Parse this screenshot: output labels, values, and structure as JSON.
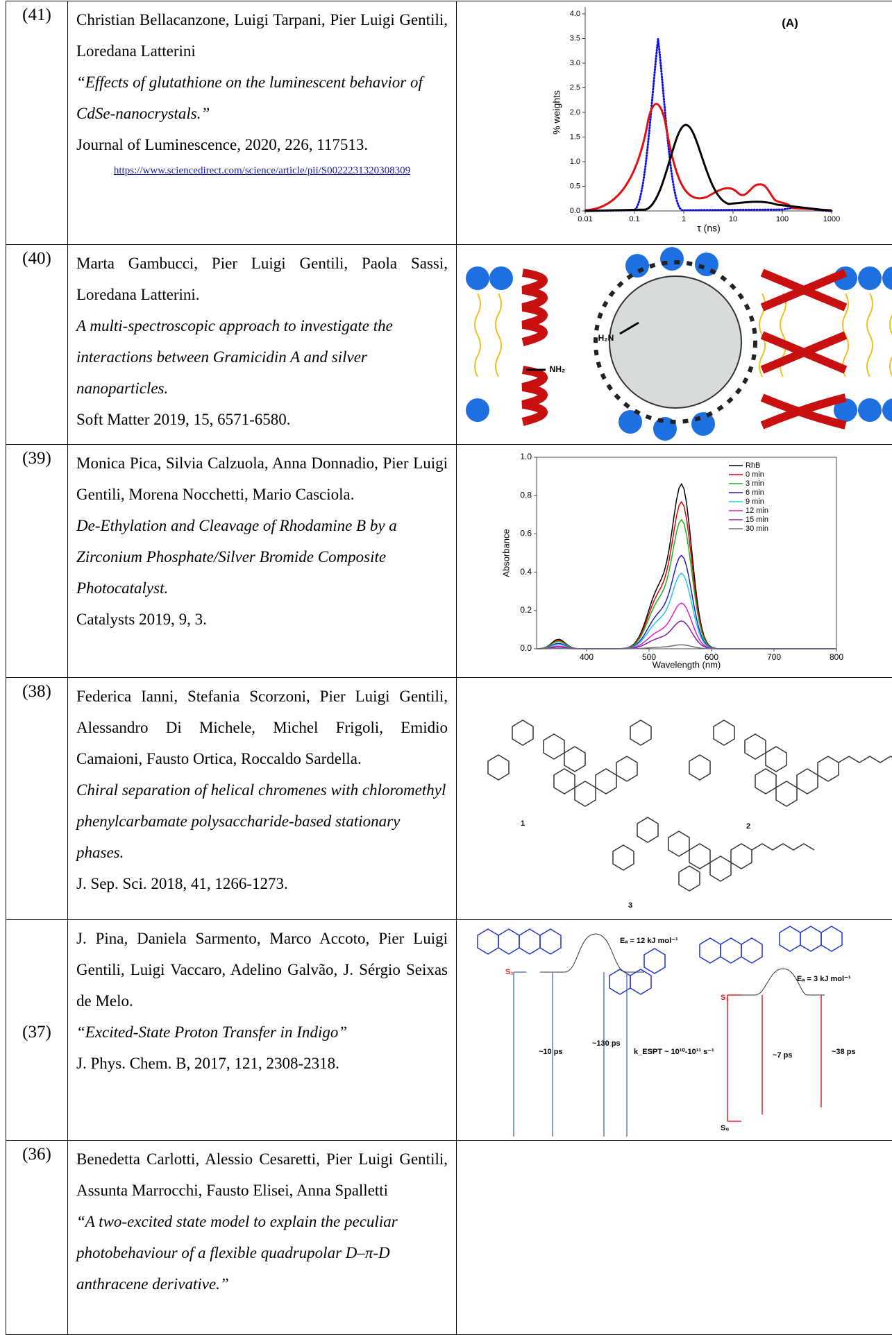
{
  "table": {
    "rows": [
      {
        "number": "(41)",
        "authors": "Christian Bellacanzone, Luigi Tarpani, Pier Luigi Gentili, Loredana Latterini",
        "title": "“Effects of glutathione on the luminescent behavior of CdSe-nanocrystals.”",
        "journal": "Journal of Luminescence, 2020, 226, 117513.",
        "link": "https://www.sciencedirect.com/science/article/pii/S0022231320308309",
        "figure": {
          "label": "(A)",
          "y_label": "% weights",
          "x_label": "τ (ns)",
          "yticks": [
            "0.0",
            "0.5",
            "1.0",
            "1.5",
            "2.0",
            "2.5",
            "3.0",
            "3.5",
            "4.0"
          ],
          "xticks": [
            "0.01",
            "0.1",
            "1",
            "10",
            "100",
            "1000"
          ]
        }
      },
      {
        "number": "(40)",
        "authors": "Marta Gambucci, Pier Luigi Gentili, Paola Sassi, Loredana Latterini.",
        "title": "A multi-spectroscopic approach to investigate the interactions between Gramicidin A and silver nanoparticles.",
        "journal": "Soft Matter 2019, 15, 6571-6580.",
        "figure": {
          "labels": [
            "H₂N",
            "NH₂"
          ]
        }
      },
      {
        "number": "(39)",
        "authors": "Monica Pica, Silvia Calzuola, Anna Donnadio, Pier Luigi Gentili, Morena Nocchetti, Mario Casciola.",
        "title": "De-Ethylation and Cleavage of Rhodamine B by a Zirconium Phosphate/Silver Bromide Composite Photocatalyst.",
        "journal": "Catalysts 2019, 9, 3.",
        "figure": {
          "y_label": "Absorbance",
          "x_label": "Wavelength (nm)",
          "yticks": [
            "0.0",
            "0.2",
            "0.4",
            "0.6",
            "0.8",
            "1.0"
          ],
          "xticks": [
            "400",
            "500",
            "600",
            "700",
            "800"
          ],
          "legend": [
            {
              "name": "RhB",
              "color": "#000000"
            },
            {
              "name": "0 min",
              "color": "#e00000"
            },
            {
              "name": "3 min",
              "color": "#20b020"
            },
            {
              "name": "6 min",
              "color": "#2020c0"
            },
            {
              "name": "9 min",
              "color": "#20c8e8"
            },
            {
              "name": "12 min",
              "color": "#e020c0"
            },
            {
              "name": "15 min",
              "color": "#8020a0"
            },
            {
              "name": "30 min",
              "color": "#707070"
            }
          ]
        }
      },
      {
        "number": "(38)",
        "authors": "Federica Ianni, Stefania Scorzoni, Pier Luigi Gentili, Alessandro Di Michele, Michel Frigoli, Emidio Camaioni, Fausto Ortica, Roccaldo Sardella.",
        "title": "Chiral separation of helical chromenes with chloromethyl phenylcarbamate polysaccharide-based stationary phases.",
        "journal": "J. Sep. Sci. 2018, 41, 1266-1273.",
        "figure": {
          "labels": [
            "1",
            "2",
            "3"
          ]
        }
      },
      {
        "number": "(37)",
        "authors": "J. Pina, Daniela Sarmento, Marco Accoto, Pier Luigi Gentili, Luigi Vaccaro, Adelino Galvão, J. Sérgio Seixas de Melo.",
        "title": "“Excited-State Proton Transfer in Indigo”",
        "journal": "J. Phys. Chem. B, 2017, 121, 2308-2318.",
        "figure": {
          "labels": [
            "Eₐ = 12 kJ mol⁻¹",
            "S₁",
            "~10 ps",
            "~130 ps",
            "k_ESPT ~ 10¹⁰-10¹¹ s⁻¹",
            "Eₐ = 3 kJ mol⁻¹",
            "S₁",
            "S₀",
            "~7 ps",
            "~38 ps"
          ]
        }
      },
      {
        "number": "(36)",
        "authors": "Benedetta Carlotti, Alessio Cesaretti, Pier Luigi Gentili, Assunta Marrocchi, Fausto Elisei, Anna Spalletti",
        "title": "“A two-excited state model to explain the peculiar photobehaviour of a flexible quadrupolar D–π-D anthracene derivative.”"
      }
    ]
  }
}
